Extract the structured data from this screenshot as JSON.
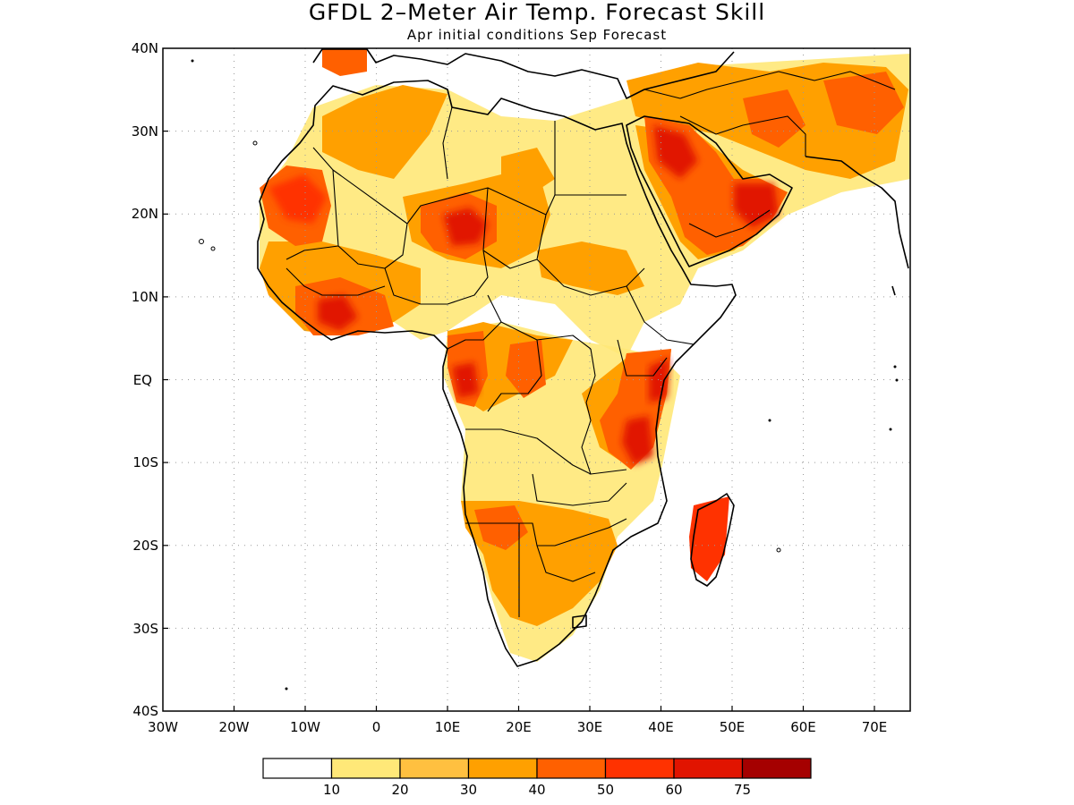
{
  "title": "GFDL 2–Meter Air Temp. Forecast Skill",
  "subtitle": "Apr initial conditions   Sep Forecast",
  "lat_labels": [
    "40N",
    "30N",
    "20N",
    "10N",
    "EQ",
    "10S",
    "20S",
    "30S",
    "40S"
  ],
  "lon_labels": [
    "30W",
    "20W",
    "10W",
    "0",
    "10E",
    "20E",
    "30E",
    "40E",
    "50E",
    "60E",
    "70E"
  ],
  "colorbar": {
    "colors": [
      "#ffffff",
      "#ffe878",
      "#ffc040",
      "#ffa000",
      "#ff6000",
      "#ff3200",
      "#e11400",
      "#a50000"
    ],
    "labels": [
      "10",
      "20",
      "30",
      "40",
      "50",
      "60",
      "75"
    ]
  }
}
